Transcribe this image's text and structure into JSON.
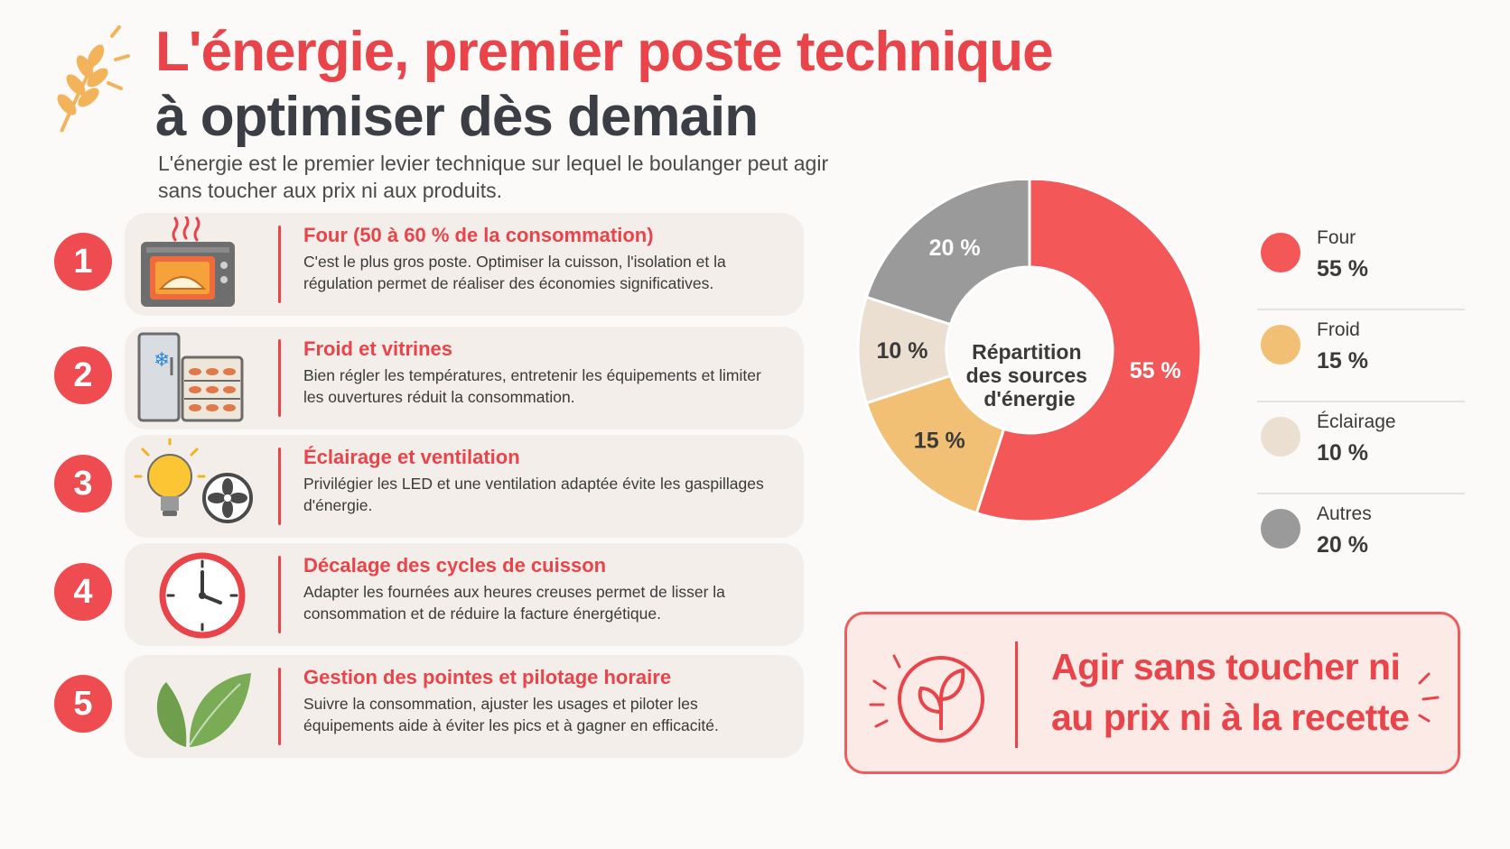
{
  "header": {
    "title_line1": "L'énergie, premier poste technique",
    "title_line2": "à optimiser dès demain",
    "subtitle": "L'énergie est le premier levier technique sur lequel le boulanger peut agir sans toucher aux prix ni aux produits."
  },
  "items": [
    {
      "number": "1",
      "title": "Four (50 à 60 % de la consommation)",
      "text": "C'est le plus gros poste. Optimiser la cuisson, l'isolation et la régulation permet de réaliser des économies significatives.",
      "icon": "oven-icon"
    },
    {
      "number": "2",
      "title": "Froid et vitrines",
      "text": "Bien régler les températures, entretenir les équipements et limiter les ouvertures réduit la consommation.",
      "icon": "fridge-display-icon"
    },
    {
      "number": "3",
      "title": "Éclairage et ventilation",
      "text": "Privilégier les LED et une ventilation adaptée évite les gaspillages d'énergie.",
      "icon": "bulb-fan-icon"
    },
    {
      "number": "4",
      "title": "Décalage des cycles de cuisson",
      "text": "Adapter les fournées aux heures creuses permet de lisser la consommation et de réduire la facture énergétique.",
      "icon": "clock-icon"
    },
    {
      "number": "5",
      "title": "Gestion des pointes et pilotage horaire",
      "text": "Suivre la consommation, ajuster les usages et piloter les équipements aide à éviter les pics et à gagner en efficacité.",
      "icon": "leaf-icon"
    }
  ],
  "chart_data": {
    "type": "pie",
    "title": "Répartition des sources d'énergie",
    "categories": [
      "Four",
      "Froid",
      "Éclairage",
      "Autres"
    ],
    "values": [
      55,
      15,
      10,
      20
    ],
    "value_labels": [
      "55 %",
      "15 %",
      "10 %",
      "20 %"
    ],
    "colors": [
      "#f35757",
      "#f2c074",
      "#ebdfd1",
      "#9a9a9a"
    ],
    "legend_position": "right"
  },
  "cta": {
    "text_line1": "Agir sans toucher ni",
    "text_line2": "au prix ni à la recette",
    "icon": "leaf-circle-icon"
  }
}
